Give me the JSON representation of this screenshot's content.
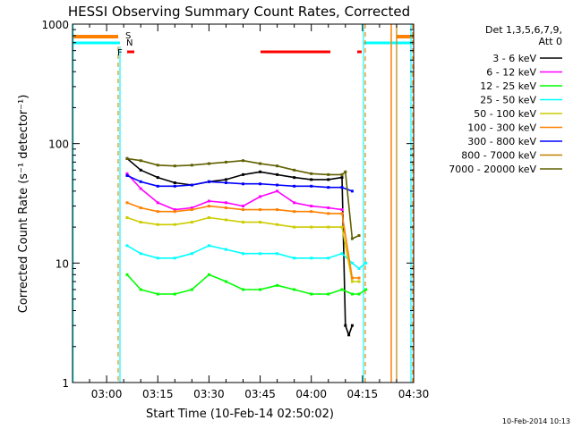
{
  "chart_data": {
    "type": "line",
    "title": "HESSI Observing Summary Count Rates, Corrected",
    "xlabel": "Start Time (10-Feb-14 02:50:02)",
    "ylabel": "Corrected Count Rate (s⁻¹ detector⁻¹)",
    "x_range": [
      "02:50:02",
      "04:30"
    ],
    "x_tick_labels": [
      "03:00",
      "03:15",
      "03:30",
      "03:45",
      "04:00",
      "04:15",
      "04:30"
    ],
    "x_tick_minutes": [
      10,
      25,
      40,
      55,
      70,
      85,
      100
    ],
    "y_scale": "log",
    "ylim": [
      1,
      1000
    ],
    "y_tick_labels": [
      "1",
      "10",
      "100",
      "1000"
    ],
    "y_tick_values": [
      1,
      10,
      100,
      1000
    ],
    "legend": {
      "placement": "right",
      "header": [
        "Det 1,3,5,6,7,9,",
        "Att 0"
      ]
    },
    "series": [
      {
        "name": "3 - 6 keV",
        "color": "#000000",
        "x": [
          16,
          20,
          25,
          30,
          35,
          40,
          45,
          50,
          55,
          60,
          65,
          70,
          75,
          79,
          80,
          81,
          82
        ],
        "values": [
          75,
          60,
          52,
          47,
          45,
          48,
          50,
          55,
          58,
          55,
          52,
          50,
          50,
          52,
          3,
          2.5,
          3
        ]
      },
      {
        "name": "6 - 12 keV",
        "color": "#ff00ff",
        "x": [
          16,
          20,
          25,
          30,
          35,
          40,
          45,
          50,
          55,
          60,
          65,
          70,
          75,
          79
        ],
        "values": [
          56,
          42,
          32,
          28,
          29,
          33,
          32,
          30,
          36,
          40,
          32,
          30,
          29,
          28
        ]
      },
      {
        "name": "12 - 25 keV",
        "color": "#00ff00",
        "x": [
          16,
          20,
          25,
          30,
          35,
          40,
          45,
          50,
          55,
          60,
          65,
          70,
          75,
          79,
          82,
          84,
          86
        ],
        "values": [
          8,
          6,
          5.5,
          5.5,
          6,
          8,
          7,
          6,
          6,
          6.5,
          6,
          5.5,
          5.5,
          6,
          5.5,
          5.5,
          6
        ]
      },
      {
        "name": "25 - 50 keV",
        "color": "#00ffff",
        "x": [
          16,
          20,
          25,
          30,
          35,
          40,
          45,
          50,
          55,
          60,
          65,
          70,
          75,
          79,
          82,
          84,
          86
        ],
        "values": [
          14,
          12,
          11,
          11,
          12,
          14,
          13,
          12,
          12,
          12,
          11,
          11,
          11,
          12,
          10,
          9,
          10
        ]
      },
      {
        "name": "50 - 100 keV",
        "color": "#cccc00",
        "x": [
          16,
          20,
          25,
          30,
          35,
          40,
          45,
          50,
          55,
          60,
          65,
          70,
          75,
          79,
          82,
          84
        ],
        "values": [
          24,
          22,
          21,
          21,
          22,
          24,
          23,
          22,
          22,
          21,
          20,
          20,
          20,
          20,
          7,
          7
        ]
      },
      {
        "name": "100 - 300 keV",
        "color": "#ff8000",
        "x": [
          16,
          20,
          25,
          30,
          35,
          40,
          45,
          50,
          55,
          60,
          65,
          70,
          75,
          79,
          82,
          84
        ],
        "values": [
          32,
          29,
          27,
          27,
          28,
          30,
          29,
          28,
          28,
          28,
          27,
          27,
          26,
          26,
          7.5,
          7.5
        ]
      },
      {
        "name": "300 - 800 keV",
        "color": "#0000ff",
        "x": [
          16,
          20,
          25,
          30,
          35,
          40,
          45,
          50,
          55,
          60,
          65,
          70,
          75,
          79,
          82
        ],
        "values": [
          54,
          48,
          44,
          44,
          45,
          48,
          47,
          46,
          46,
          45,
          44,
          44,
          43,
          43,
          40
        ]
      },
      {
        "name": "800 - 7000 keV",
        "color": "#c08000",
        "x": [],
        "values": []
      },
      {
        "name": "7000 - 20000 keV",
        "color": "#606000",
        "x": [
          16,
          20,
          25,
          30,
          35,
          40,
          45,
          50,
          55,
          60,
          65,
          70,
          75,
          79,
          80,
          82,
          84
        ],
        "values": [
          75,
          72,
          66,
          65,
          66,
          68,
          70,
          72,
          68,
          65,
          60,
          56,
          55,
          55,
          58,
          16,
          17
        ]
      }
    ],
    "markers": {
      "S": {
        "label": "S",
        "color": "#ff8000"
      },
      "N": {
        "label": "N",
        "color": "#00ffff"
      },
      "F": {
        "label": "F",
        "color": "#ff0000"
      }
    },
    "grid": false
  },
  "footer": {
    "date_stamp": "10-Feb-2014 10:13"
  }
}
